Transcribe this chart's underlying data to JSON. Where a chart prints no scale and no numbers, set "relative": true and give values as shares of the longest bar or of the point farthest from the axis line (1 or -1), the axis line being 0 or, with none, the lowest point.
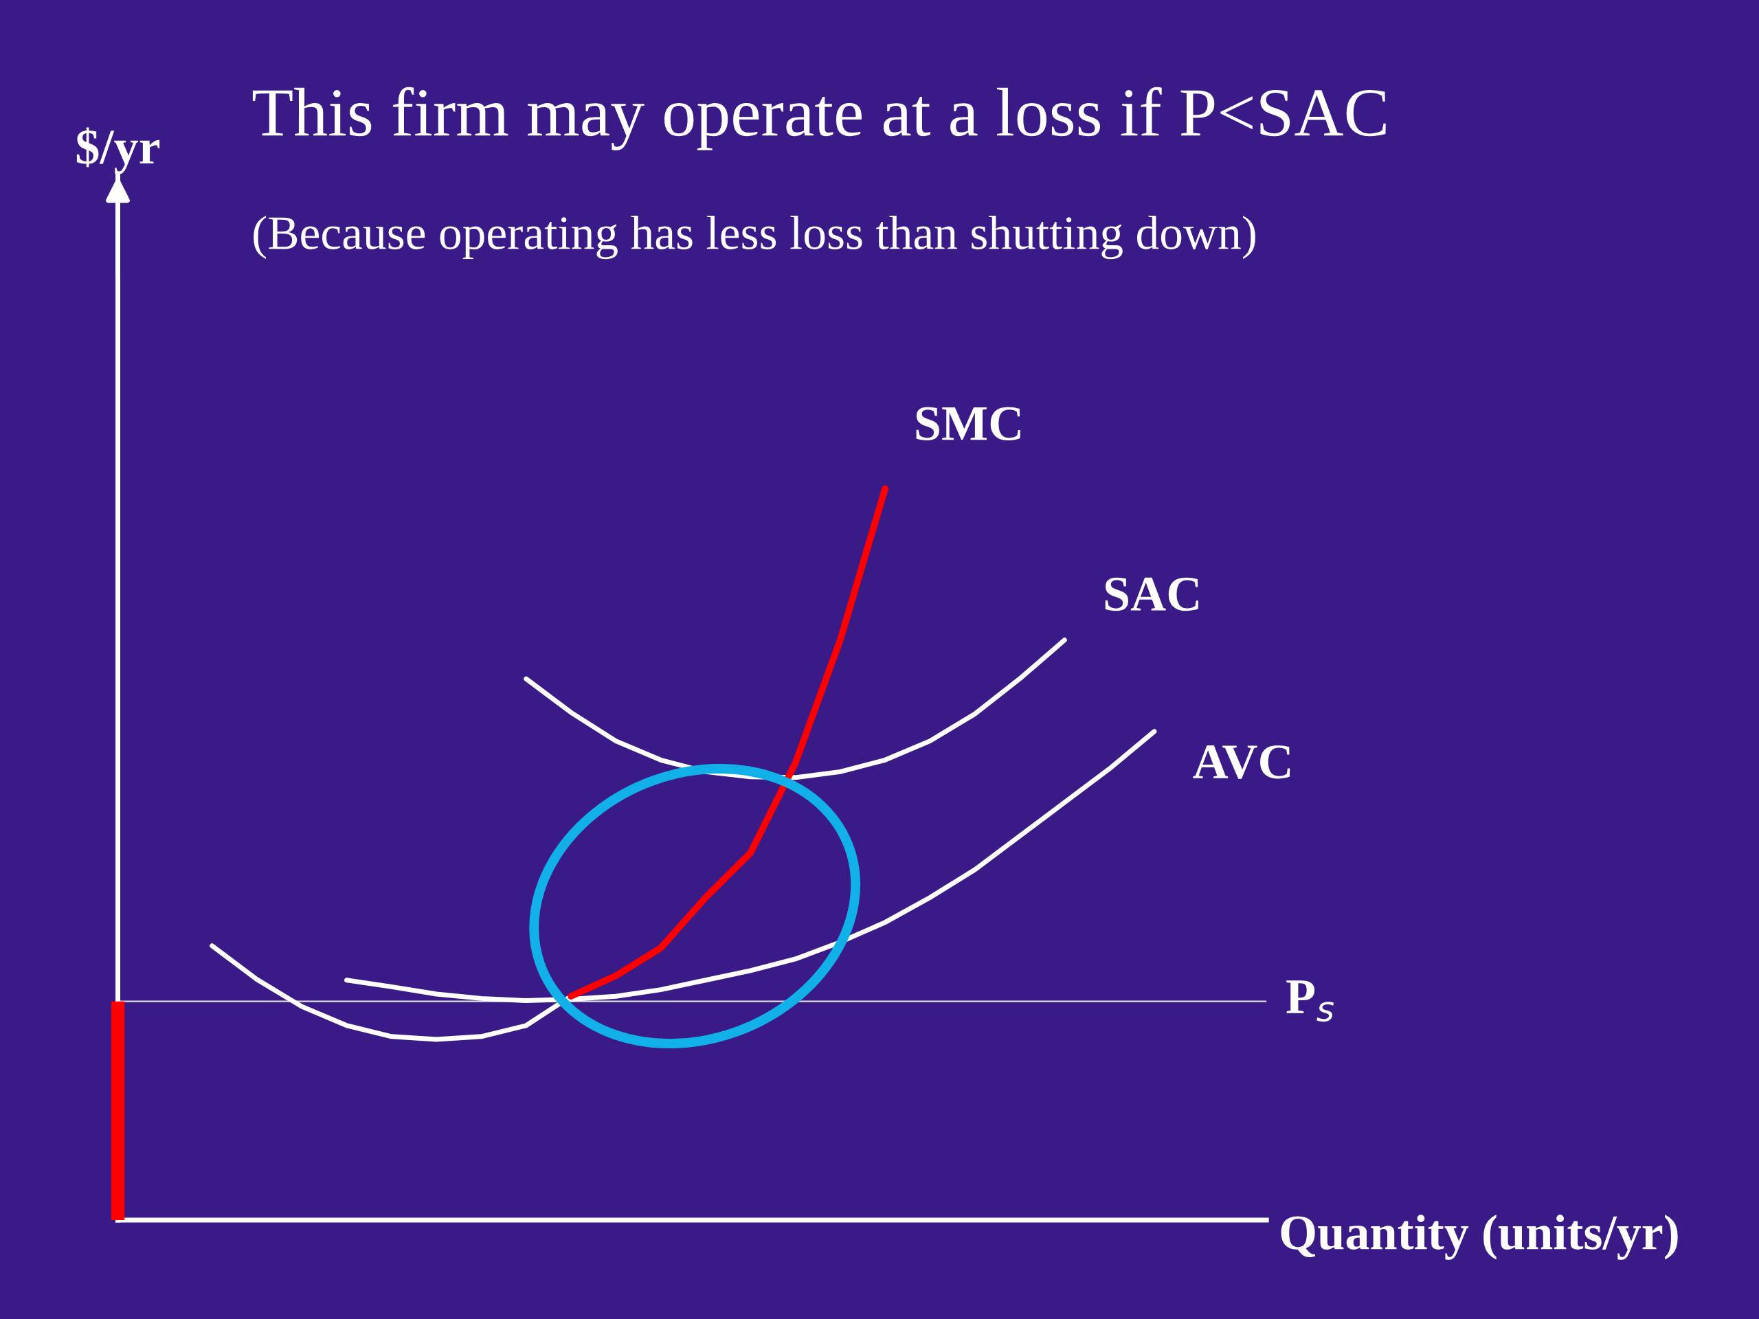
{
  "chart_data": {
    "type": "line",
    "relative": true,
    "title": "This firm may operate at a loss if P<SAC",
    "subtitle": "(Because operating has less loss than shutting down)",
    "xlabel": "Quantity (units/yr)",
    "annotations": [
      "$/yr"
    ],
    "categories": [
      null,
      null,
      null,
      null,
      null,
      null,
      null,
      null,
      null,
      null,
      null,
      null,
      null,
      null,
      null,
      null,
      null,
      null,
      null,
      null,
      null,
      null,
      null,
      null,
      null
    ],
    "series": [
      {
        "color": "#ffffff",
        "values": [
          null,
          0.375,
          0.329,
          0.292,
          0.266,
          0.251,
          0.247,
          0.251,
          0.266,
          0.306,
          null,
          null,
          null,
          null,
          null,
          null,
          null,
          null,
          null,
          null,
          null,
          null,
          null,
          null,
          null
        ]
      },
      {
        "name": "AVC",
        "color": "#ffffff",
        "values": [
          null,
          null,
          null,
          null,
          0.328,
          0.319,
          0.309,
          0.303,
          0.3,
          0.302,
          0.306,
          0.315,
          0.328,
          0.341,
          0.357,
          0.38,
          0.407,
          0.441,
          0.479,
          0.525,
          0.571,
          0.617,
          0.668,
          null,
          null
        ]
      },
      {
        "name": "SAC",
        "color": "#ffffff",
        "values": [
          null,
          null,
          null,
          null,
          null,
          null,
          null,
          null,
          0.74,
          0.694,
          0.655,
          0.629,
          0.613,
          0.606,
          0.605,
          0.613,
          0.629,
          0.655,
          0.692,
          0.74,
          0.793,
          null,
          null,
          null,
          null
        ]
      },
      {
        "name": "SMC",
        "color": "#ff0000",
        "values": [
          null,
          null,
          null,
          null,
          null,
          null,
          null,
          null,
          null,
          0.306,
          0.334,
          0.372,
          0.441,
          0.502,
          0.625,
          0.793,
          1.0,
          null,
          null,
          null,
          null,
          null,
          null,
          null,
          null
        ]
      }
    ],
    "ref_lines": [
      {
        "axis": "y",
        "value": 0.299,
        "label": "P$_{s}$",
        "color": "#dddddd"
      }
    ]
  }
}
